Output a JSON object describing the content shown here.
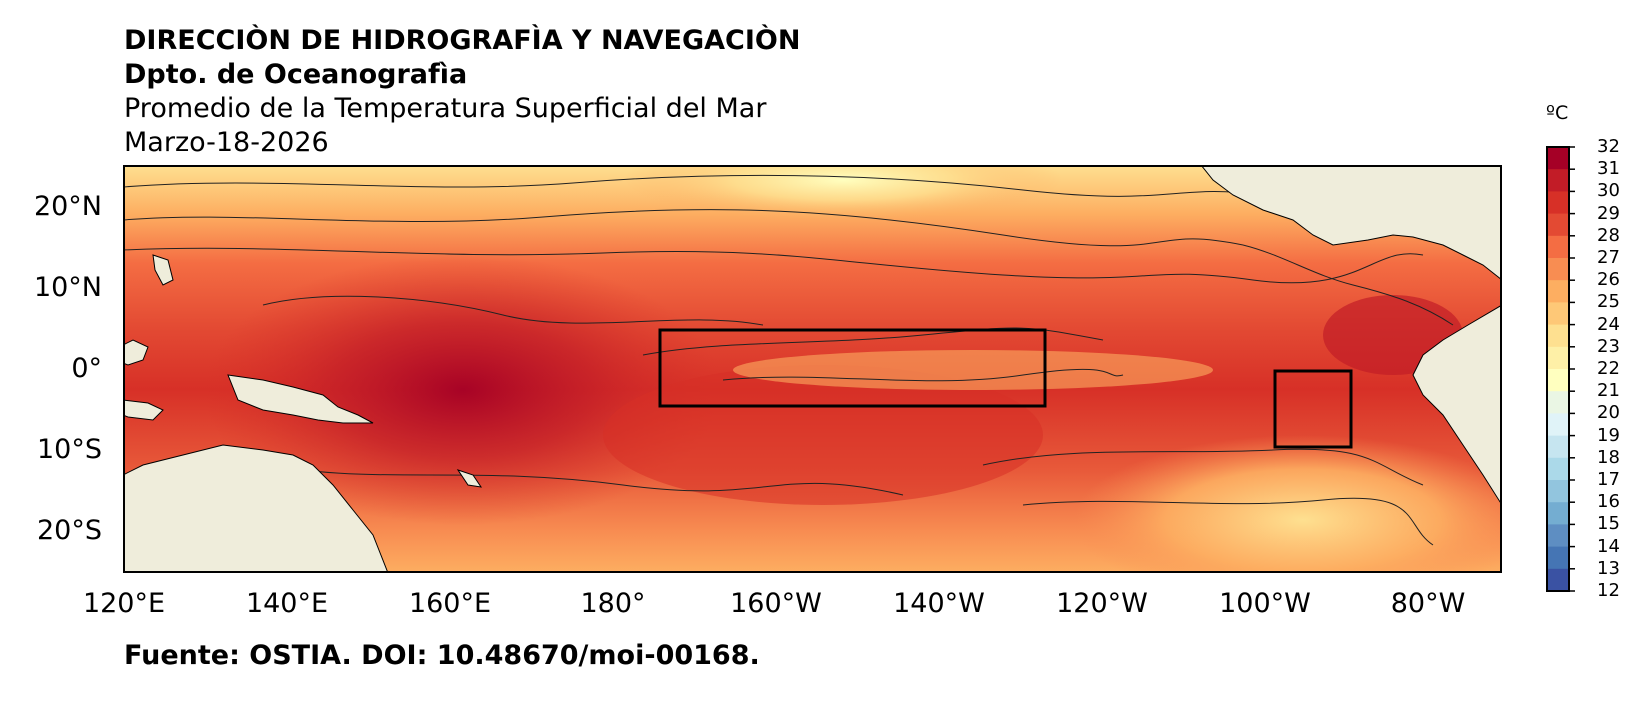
{
  "header": {
    "line1": "DIRECCIÒN DE HIDROGRAFÌA Y NAVEGACIÒN",
    "line2": "Dpto. de Oceanografìa",
    "line3": "Promedio de la Temperatura Superficial del Mar",
    "line4": "Marzo-18-2026"
  },
  "map": {
    "lat_ticks": [
      "20°N",
      "10°N",
      "0°",
      "10°S",
      "20°S"
    ],
    "lon_ticks": [
      "120°E",
      "140°E",
      "160°E",
      "180°",
      "160°W",
      "140°W",
      "120°W",
      "100°W",
      "80°W"
    ],
    "boxes": [
      "niño-3.4 region",
      "niño-1+2 region"
    ],
    "land_color": "#efeddb"
  },
  "colorbar": {
    "unit": "ºC",
    "ticks": [
      "32",
      "31",
      "30",
      "29",
      "28",
      "27",
      "26",
      "25",
      "24",
      "23",
      "22",
      "21",
      "20",
      "19",
      "18",
      "17",
      "16",
      "15",
      "14",
      "13",
      "12"
    ],
    "colors": [
      "#a50026",
      "#c21c27",
      "#d73027",
      "#e34a33",
      "#f46d43",
      "#f88d52",
      "#fdae61",
      "#fec877",
      "#fee090",
      "#fef0a7",
      "#ffffbf",
      "#eaf6e4",
      "#e0f3f8",
      "#c6e5f0",
      "#abd9e9",
      "#92c5de",
      "#74add1",
      "#5e8ec2",
      "#4575b4",
      "#3a52a3"
    ]
  },
  "footer": {
    "source": "Fuente: OSTIA. DOI: 10.48670/moi-00168."
  }
}
